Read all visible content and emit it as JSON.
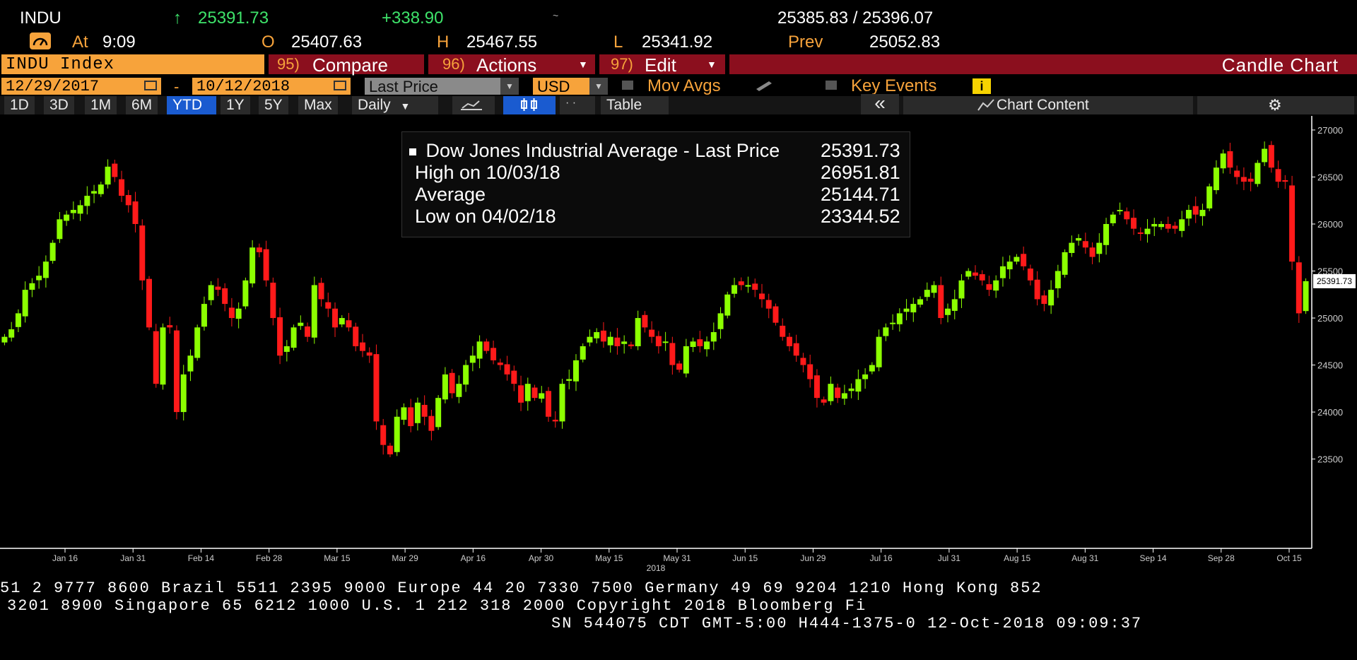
{
  "quote": {
    "ticker": "INDU",
    "arrow": "↑",
    "last": "25391.73",
    "change": "+338.90",
    "bid_ask": "25385.83 / 25396.07",
    "time_label": "At",
    "time": "9:09",
    "open_label": "O",
    "open": "25407.63",
    "high_label": "H",
    "high": "25467.55",
    "low_label": "L",
    "low": "25341.92",
    "prev_label": "Prev",
    "prev": "25052.83"
  },
  "menu": {
    "security": "INDU Index",
    "compare_num": "95)",
    "compare": "Compare",
    "actions_num": "96)",
    "actions": "Actions",
    "edit_num": "97)",
    "edit": "Edit",
    "chart_title": "Candle Chart"
  },
  "settings": {
    "start_date": "12/29/2017",
    "dash": "-",
    "end_date": "10/12/2018",
    "field": "Last Price",
    "currency": "USD",
    "mov_avgs": "Mov Avgs",
    "key_events": "Key Events",
    "info_icon": "i"
  },
  "toolbar": {
    "periods": [
      "1D",
      "3D",
      "1M",
      "6M",
      "YTD",
      "1Y",
      "5Y",
      "Max"
    ],
    "selected_period": "YTD",
    "frequency": "Daily",
    "table": "Table",
    "collapse": "«",
    "chart_content": "Chart Content"
  },
  "legend": {
    "rows": [
      {
        "label": "Dow Jones Industrial Average - Last Price",
        "value": "25391.73"
      },
      {
        "label": "High on 10/03/18",
        "value": "26951.81"
      },
      {
        "label": "Average",
        "value": "25144.71"
      },
      {
        "label": "Low on 04/02/18",
        "value": "23344.52"
      }
    ]
  },
  "chart_data": {
    "type": "candlestick",
    "title": "",
    "ylim": [
      22550,
      27150
    ],
    "y_ticks": [
      23500,
      24000,
      24500,
      25000,
      25500,
      26000,
      26500,
      27000
    ],
    "last_price_tag": "25391.73",
    "x_ticks": [
      "Jan 16",
      "Jan 31",
      "Feb 14",
      "Feb 28",
      "Mar 15",
      "Mar 29",
      "Apr 16",
      "Apr 30",
      "May 15",
      "May 31",
      "Jun 15",
      "Jun 29",
      "Jul 16",
      "Jul 31",
      "Aug 15",
      "Aug 31",
      "Sep 14",
      "Sep 28",
      "Oct 15"
    ],
    "x_year_label": "2018",
    "up_color": "#8cff00",
    "down_color": "#ff1a1a",
    "closes": [
      24800,
      24880,
      25050,
      25300,
      25370,
      25450,
      25600,
      25800,
      26050,
      26100,
      26150,
      26200,
      26300,
      26350,
      26420,
      26610,
      26500,
      26300,
      26200,
      26000,
      25400,
      24900,
      24300,
      24900,
      24900,
      24000,
      24400,
      24600,
      24900,
      25150,
      25350,
      25300,
      25150,
      25000,
      25100,
      25400,
      25750,
      25700,
      25400,
      25000,
      24600,
      24700,
      24900,
      24950,
      24800,
      25350,
      25200,
      25100,
      24900,
      25000,
      24900,
      24700,
      24650,
      24600,
      23900,
      23650,
      23550,
      23950,
      24050,
      23850,
      24100,
      23950,
      23800,
      24150,
      24400,
      24200,
      24300,
      24500,
      24600,
      24750,
      24650,
      24550,
      24500,
      24400,
      24300,
      24100,
      24300,
      24150,
      24200,
      23950,
      23900,
      24300,
      24350,
      24550,
      24700,
      24800,
      24850,
      24750,
      24800,
      24700,
      24750,
      24700,
      25000,
      24900,
      24800,
      24700,
      24750,
      24500,
      24450,
      24700,
      24750,
      24700,
      24750,
      24850,
      25050,
      25250,
      25350,
      25350,
      25350,
      25300,
      25200,
      25100,
      24950,
      24800,
      24700,
      24600,
      24500,
      24350,
      24150,
      24100,
      24300,
      24150,
      24200,
      24250,
      24350,
      24400,
      24500,
      24800,
      24900,
      24950,
      25050,
      25100,
      25150,
      25200,
      25300,
      25350,
      25000,
      25100,
      25200,
      25400,
      25500,
      25450,
      25400,
      25300,
      25400,
      25550,
      25600,
      25650,
      25550,
      25400,
      25200,
      25150,
      25300,
      25500,
      25700,
      25800,
      25850,
      25750,
      25650,
      25800,
      26000,
      26100,
      26150,
      26050,
      25950,
      25900,
      25950,
      26000,
      26000,
      25950,
      25950,
      26050,
      26150,
      26100,
      26150,
      26400,
      26600,
      26750,
      26600,
      26500,
      26450,
      26450,
      26650,
      26800,
      26600,
      26450,
      26450,
      25600,
      25050,
      25391.73
    ],
    "up": "from closes",
    "high_label": "High on 10/03/18",
    "avg_label": "Average",
    "low_label": "Low on 04/02/18"
  },
  "footer": {
    "line1": "51 2 9777 8600 Brazil 5511 2395 9000 Europe 44 20 7330 7500 Germany 49 69 9204 1210 Hong Kong 852",
    "line2": "3201 8900      Singapore 65 6212 1000      U.S. 1 212 318 2000        Copyright 2018 Bloomberg Fi",
    "line3": "SN 544075 CDT  GMT-5:00 H444-1375-0 12-Oct-2018 09:09:37"
  },
  "colors": {
    "orange": "#f7a33b",
    "red_bar": "#8b0f1e",
    "green_text": "#3ee36a",
    "selected_tab": "#1a5bd0"
  }
}
